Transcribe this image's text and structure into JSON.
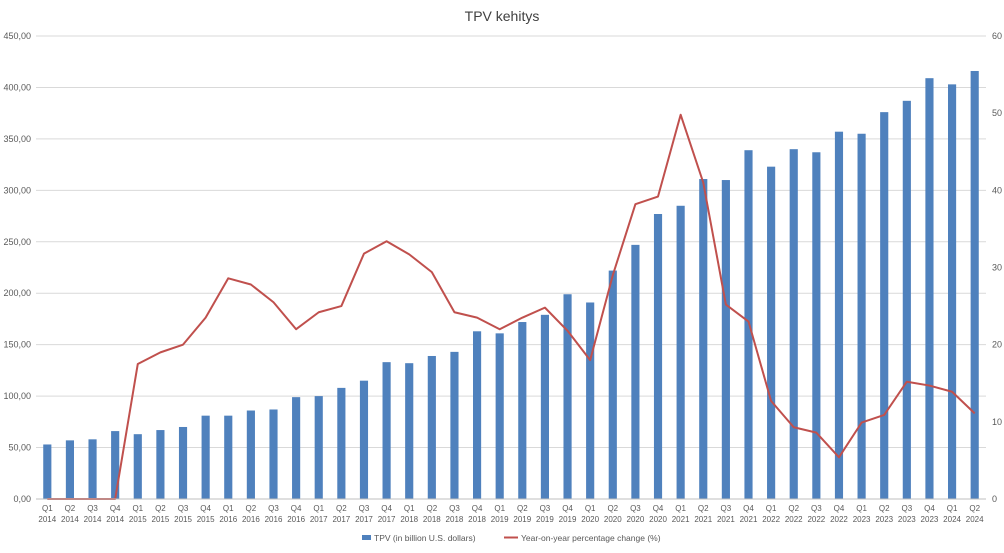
{
  "chart_data": {
    "type": "bar",
    "title": "TPV kehitys",
    "categories": [
      [
        "Q1",
        "2014"
      ],
      [
        "Q2",
        "2014"
      ],
      [
        "Q3",
        "2014"
      ],
      [
        "Q4",
        "2014"
      ],
      [
        "Q1",
        "2015"
      ],
      [
        "Q2",
        "2015"
      ],
      [
        "Q3",
        "2015"
      ],
      [
        "Q4",
        "2015"
      ],
      [
        "Q1",
        "2016"
      ],
      [
        "Q2",
        "2016"
      ],
      [
        "Q3",
        "2016"
      ],
      [
        "Q4",
        "2016"
      ],
      [
        "Q1",
        "2017"
      ],
      [
        "Q2",
        "2017"
      ],
      [
        "Q3",
        "2017"
      ],
      [
        "Q4",
        "2017"
      ],
      [
        "Q1",
        "2018"
      ],
      [
        "Q2",
        "2018"
      ],
      [
        "Q3",
        "2018"
      ],
      [
        "Q4",
        "2018"
      ],
      [
        "Q1",
        "2019"
      ],
      [
        "Q2",
        "2019"
      ],
      [
        "Q3",
        "2019"
      ],
      [
        "Q4",
        "2019"
      ],
      [
        "Q1",
        "2020"
      ],
      [
        "Q2",
        "2020"
      ],
      [
        "Q3",
        "2020"
      ],
      [
        "Q4",
        "2020"
      ],
      [
        "Q1",
        "2021"
      ],
      [
        "Q2",
        "2021"
      ],
      [
        "Q3",
        "2021"
      ],
      [
        "Q4",
        "2021"
      ],
      [
        "Q1",
        "2022"
      ],
      [
        "Q2",
        "2022"
      ],
      [
        "Q3",
        "2022"
      ],
      [
        "Q4",
        "2022"
      ],
      [
        "Q1",
        "2023"
      ],
      [
        "Q2",
        "2023"
      ],
      [
        "Q3",
        "2023"
      ],
      [
        "Q4",
        "2023"
      ],
      [
        "Q1",
        "2024"
      ],
      [
        "Q2",
        "2024"
      ]
    ],
    "series": [
      {
        "name": "TPV (in billion U.S. dollars)",
        "type": "bar",
        "axis": "left",
        "color": "#4f81bd",
        "values": [
          53,
          57,
          58,
          66,
          63,
          67,
          70,
          81,
          81,
          86,
          87,
          99,
          100,
          108,
          115,
          133,
          132,
          139,
          143,
          163,
          161,
          172,
          179,
          199,
          191,
          222,
          247,
          277,
          285,
          311,
          310,
          339,
          323,
          340,
          337,
          357,
          355,
          376,
          387,
          409,
          403,
          416
        ]
      },
      {
        "name": "Year-on-year percentage change (%)",
        "type": "line",
        "axis": "right",
        "color": "#c0504d",
        "values": [
          0,
          0,
          0,
          0,
          17.5,
          19,
          20,
          23.5,
          28.6,
          27.8,
          25.5,
          22,
          24.2,
          25,
          31.8,
          33.4,
          31.7,
          29.4,
          24.2,
          23.5,
          22,
          23.5,
          24.8,
          21.8,
          18,
          29,
          38.2,
          39.2,
          49.8,
          41,
          25.2,
          23,
          12.7,
          9.3,
          8.6,
          5.4,
          9.9,
          10.9,
          15.2,
          14.7,
          13.9,
          11.1
        ]
      }
    ],
    "y_left": {
      "min": 0,
      "max": 450,
      "step": 50,
      "tick_labels": [
        "0,00",
        "50,00",
        "100,00",
        "150,00",
        "200,00",
        "250,00",
        "300,00",
        "350,00",
        "400,00",
        "450,00"
      ]
    },
    "y_right": {
      "min": 0,
      "max": 60,
      "step": 10,
      "tick_labels": [
        "0",
        "10",
        "20",
        "30",
        "40",
        "50",
        "60"
      ]
    },
    "grid": true,
    "legend_position": "bottom"
  }
}
